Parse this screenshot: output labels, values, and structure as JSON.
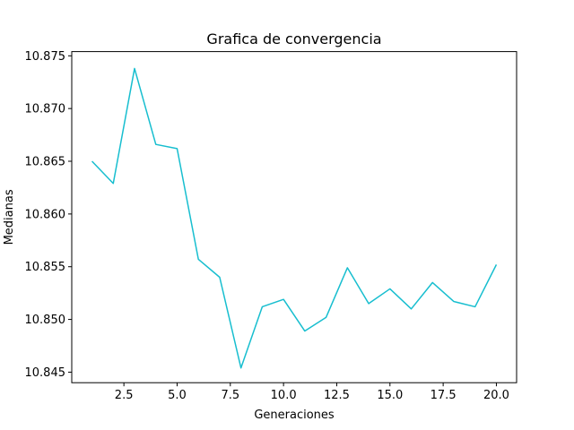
{
  "chart_data": {
    "type": "line",
    "title": "Grafica de convergencia",
    "xlabel": "Generaciones",
    "ylabel": "Medianas",
    "xlim": [
      0.05,
      20.95
    ],
    "ylim": [
      10.844,
      10.8754
    ],
    "x_ticks": [
      2.5,
      5.0,
      7.5,
      10.0,
      12.5,
      15.0,
      17.5,
      20.0
    ],
    "x_tick_labels": [
      "2.5",
      "5.0",
      "7.5",
      "10.0",
      "12.5",
      "15.0",
      "17.5",
      "20.0"
    ],
    "y_ticks": [
      10.845,
      10.85,
      10.855,
      10.86,
      10.865,
      10.87,
      10.875
    ],
    "y_tick_labels": [
      "10.845",
      "10.850",
      "10.855",
      "10.860",
      "10.865",
      "10.870",
      "10.875"
    ],
    "grid": false,
    "series": [
      {
        "color": "#17becf",
        "x": [
          1,
          2,
          3,
          4,
          5,
          6,
          7,
          8,
          9,
          10,
          11,
          12,
          13,
          14,
          15,
          16,
          17,
          18,
          19,
          20
        ],
        "y": [
          10.865,
          10.8629,
          10.8738,
          10.8666,
          10.8662,
          10.8557,
          10.854,
          10.8454,
          10.8512,
          10.8519,
          10.8489,
          10.8502,
          10.8549,
          10.8515,
          10.8529,
          10.851,
          10.8535,
          10.8517,
          10.8512,
          10.8552
        ]
      }
    ]
  }
}
